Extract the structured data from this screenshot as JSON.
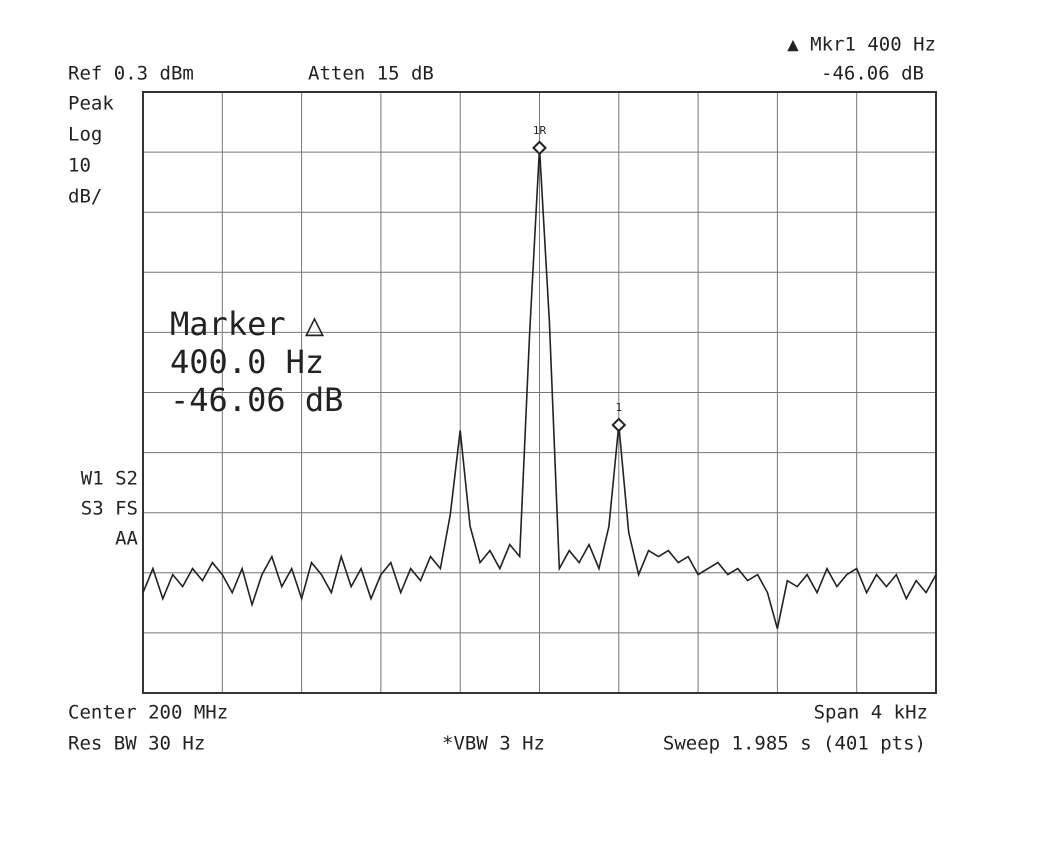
{
  "chart_data": {
    "type": "line",
    "ref": "Ref 0.3 dBm",
    "atten": "Atten 15 dB",
    "marker_readout": "▲ Mkr1  400 Hz",
    "marker_delta": "-46.06 dB",
    "left_labels": [
      "Peak",
      "Log",
      "10",
      "dB/"
    ],
    "mode_labels": [
      "W1 S2",
      "S3 FS",
      "AA"
    ],
    "marker_box": [
      "Marker △",
      "400.0  Hz",
      "-46.06 dB"
    ],
    "center": "Center 200 MHz",
    "res_bw": "Res BW 30 Hz",
    "vbw": "*VBW 3 Hz",
    "span": "Span 4 kHz",
    "sweep": "Sweep 1.985 s (401 pts)",
    "xlim": [
      -2000,
      2000
    ],
    "ylim": [
      -99.7,
      0.3
    ],
    "xticks": [
      -2000,
      -1600,
      -1200,
      -800,
      -400,
      0,
      400,
      800,
      1200,
      1600,
      2000
    ],
    "yticks": [
      -99.7,
      -89.7,
      -79.7,
      -69.7,
      -59.7,
      -49.7,
      -39.7,
      -29.7,
      -19.7,
      -9.7,
      0.3
    ],
    "grid": true,
    "x": [
      -2000,
      -1950,
      -1900,
      -1850,
      -1800,
      -1750,
      -1700,
      -1650,
      -1600,
      -1550,
      -1500,
      -1450,
      -1400,
      -1350,
      -1300,
      -1250,
      -1200,
      -1150,
      -1100,
      -1050,
      -1000,
      -950,
      -900,
      -850,
      -800,
      -750,
      -700,
      -650,
      -600,
      -550,
      -500,
      -450,
      -400,
      -350,
      -300,
      -250,
      -200,
      -150,
      -100,
      -50,
      0,
      50,
      100,
      150,
      200,
      250,
      300,
      350,
      400,
      450,
      500,
      550,
      600,
      650,
      700,
      750,
      800,
      850,
      900,
      950,
      1000,
      1050,
      1100,
      1150,
      1200,
      1250,
      1300,
      1350,
      1400,
      1450,
      1500,
      1550,
      1600,
      1650,
      1700,
      1750,
      1800,
      1850,
      1900,
      1950,
      2000
    ],
    "series": [
      {
        "name": "Trace 1",
        "color": "#222222",
        "values": [
          -83,
          -79,
          -84,
          -80,
          -82,
          -79,
          -81,
          -78,
          -80,
          -83,
          -79,
          -85,
          -80,
          -77,
          -82,
          -79,
          -84,
          -78,
          -80,
          -83,
          -77,
          -82,
          -79,
          -84,
          -80,
          -78,
          -83,
          -79,
          -81,
          -77,
          -79,
          -70,
          -56,
          -72,
          -78,
          -76,
          -79,
          -75,
          -77,
          -40,
          -9,
          -38,
          -79,
          -76,
          -78,
          -75,
          -79,
          -72,
          -55.1,
          -73,
          -80,
          -76,
          -77,
          -76,
          -78,
          -77,
          -80,
          -79,
          -78,
          -80,
          -79,
          -81,
          -80,
          -83,
          -89,
          -81,
          -82,
          -80,
          -83,
          -79,
          -82,
          -80,
          -79,
          -83,
          -80,
          -82,
          -80,
          -84,
          -81,
          -83,
          -80
        ]
      }
    ],
    "markers": [
      {
        "label": "1R",
        "x": 0,
        "value": -9
      },
      {
        "label": "1",
        "x": 400,
        "value": -55.1
      }
    ]
  }
}
